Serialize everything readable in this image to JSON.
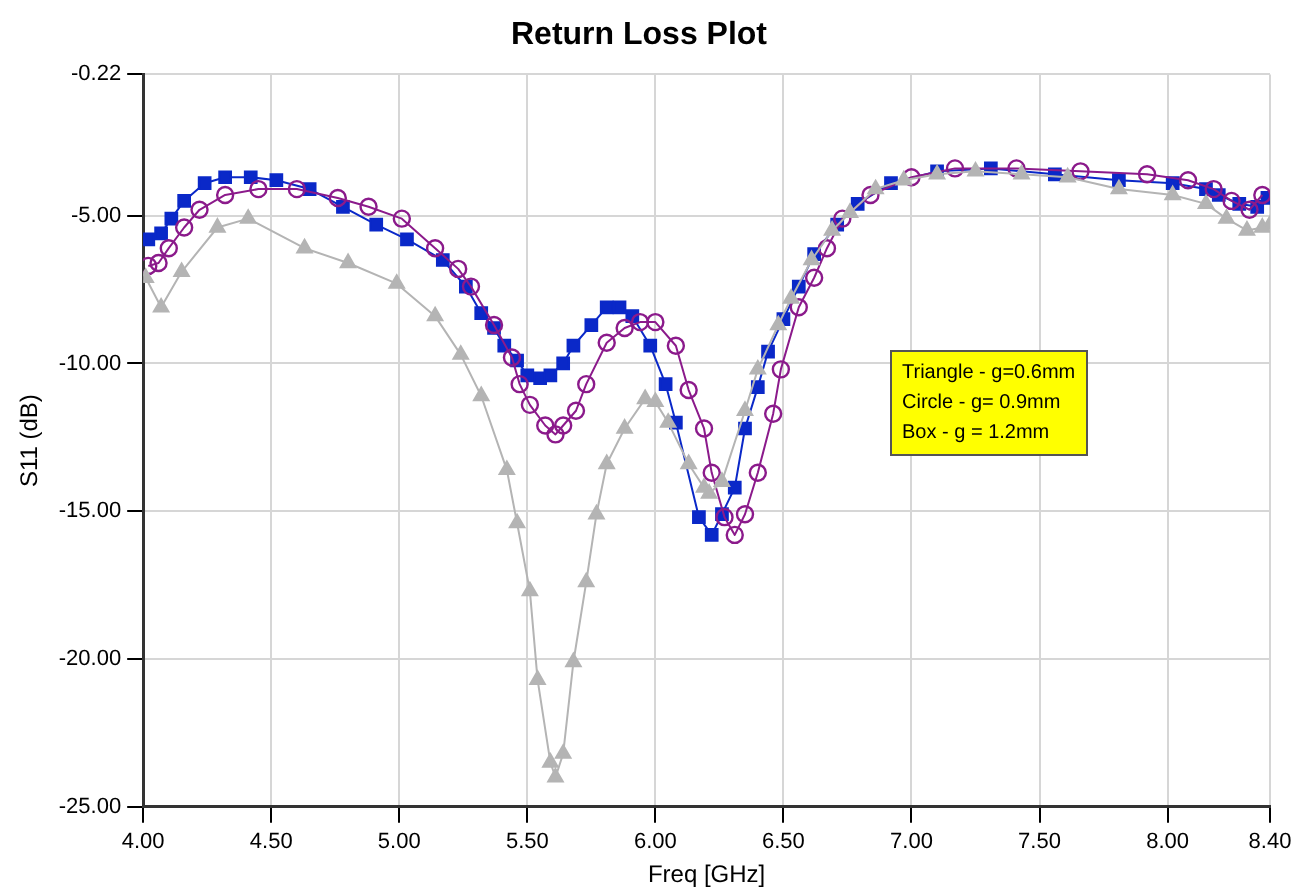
{
  "chart_data": {
    "type": "line",
    "title": "Return Loss Plot",
    "xlabel": "Freq [GHz]",
    "ylabel": "S11 (dB)",
    "xlim": [
      4,
      8.4
    ],
    "xticks": [
      {
        "value": 4,
        "label": "4.00"
      },
      {
        "value": 4.5,
        "label": "4.50"
      },
      {
        "value": 5,
        "label": "5.00"
      },
      {
        "value": 5.5,
        "label": "5.50"
      },
      {
        "value": 6,
        "label": "6.00"
      },
      {
        "value": 6.5,
        "label": "6.50"
      },
      {
        "value": 7,
        "label": "7.00"
      },
      {
        "value": 7.5,
        "label": "7.50"
      },
      {
        "value": 8,
        "label": "8.00"
      },
      {
        "value": 8.4,
        "label": "8.40"
      }
    ],
    "ylim": [
      -25,
      -0.22
    ],
    "yticks": [
      {
        "value": -25,
        "label": "-25.00"
      },
      {
        "value": -20,
        "label": "-20.00"
      },
      {
        "value": -15,
        "label": "-15.00"
      },
      {
        "value": -10,
        "label": "-10.00"
      },
      {
        "value": -5,
        "label": "-5.00"
      },
      {
        "value": -0.22,
        "label": "-0.22"
      }
    ],
    "grid": true,
    "annotations": [
      "Triangle - g=0.6mm",
      "Circle - g= 0.9mm",
      "Box - g = 1.2mm"
    ],
    "series": [
      {
        "color": "#b4b4b4",
        "marker": "triangle",
        "x": [
          4.01,
          4.07,
          4.15,
          4.29,
          4.41,
          4.63,
          4.8,
          4.99,
          5.14,
          5.24,
          5.32,
          5.42,
          5.46,
          5.51,
          5.54,
          5.59,
          5.61,
          5.64,
          5.68,
          5.73,
          5.77,
          5.81,
          5.88,
          5.96,
          6.0,
          6.05,
          6.13,
          6.19,
          6.21,
          6.26,
          6.35,
          6.4,
          6.48,
          6.53,
          6.61,
          6.69,
          6.76,
          6.86,
          6.97,
          7.1,
          7.25,
          7.43,
          7.61,
          7.81,
          8.02,
          8.15,
          8.23,
          8.31,
          8.37,
          8.4
        ],
        "values": [
          -7.1,
          -8.1,
          -6.9,
          -5.4,
          -5.1,
          -6.1,
          -6.6,
          -7.3,
          -8.4,
          -9.7,
          -11.1,
          -13.6,
          -15.4,
          -17.7,
          -20.7,
          -23.5,
          -24.0,
          -23.2,
          -20.1,
          -17.4,
          -15.1,
          -13.4,
          -12.2,
          -11.2,
          -11.3,
          -12.0,
          -13.4,
          -14.2,
          -14.4,
          -14.0,
          -11.6,
          -10.2,
          -8.7,
          -7.8,
          -6.5,
          -5.5,
          -4.9,
          -4.1,
          -3.8,
          -3.6,
          -3.5,
          -3.6,
          -3.7,
          -4.1,
          -4.3,
          -4.6,
          -5.1,
          -5.5,
          -5.4,
          -5.3
        ]
      },
      {
        "color": "#8b1a8b",
        "marker": "circle",
        "x": [
          4.02,
          4.06,
          4.1,
          4.16,
          4.22,
          4.32,
          4.45,
          4.6,
          4.76,
          4.88,
          5.01,
          5.14,
          5.23,
          5.28,
          5.37,
          5.44,
          5.47,
          5.51,
          5.57,
          5.61,
          5.64,
          5.69,
          5.73,
          5.81,
          5.88,
          5.94,
          6.0,
          6.08,
          6.13,
          6.19,
          6.22,
          6.27,
          6.31,
          6.35,
          6.4,
          6.46,
          6.49,
          6.56,
          6.62,
          6.67,
          6.73,
          6.84,
          7.0,
          7.17,
          7.41,
          7.66,
          7.92,
          8.08,
          8.18,
          8.25,
          8.32,
          8.37
        ],
        "values": [
          -6.7,
          -6.6,
          -6.1,
          -5.4,
          -4.8,
          -4.3,
          -4.1,
          -4.1,
          -4.4,
          -4.7,
          -5.1,
          -6.1,
          -6.8,
          -7.4,
          -8.7,
          -9.8,
          -10.7,
          -11.4,
          -12.1,
          -12.4,
          -12.1,
          -11.6,
          -10.7,
          -9.3,
          -8.8,
          -8.6,
          -8.6,
          -9.4,
          -10.9,
          -12.2,
          -13.7,
          -15.2,
          -15.8,
          -15.1,
          -13.7,
          -11.7,
          -10.2,
          -8.1,
          -7.1,
          -6.1,
          -5.1,
          -4.3,
          -3.7,
          -3.4,
          -3.4,
          -3.5,
          -3.6,
          -3.8,
          -4.1,
          -4.5,
          -4.8,
          -4.3
        ]
      },
      {
        "color": "#0a28c8",
        "marker": "square",
        "x": [
          4.02,
          4.07,
          4.11,
          4.16,
          4.24,
          4.32,
          4.42,
          4.52,
          4.65,
          4.78,
          4.91,
          5.03,
          5.17,
          5.26,
          5.32,
          5.37,
          5.41,
          5.46,
          5.5,
          5.55,
          5.59,
          5.64,
          5.68,
          5.75,
          5.81,
          5.86,
          5.91,
          5.98,
          6.04,
          6.08,
          6.17,
          6.22,
          6.26,
          6.31,
          6.35,
          6.4,
          6.44,
          6.5,
          6.56,
          6.62,
          6.71,
          6.79,
          6.92,
          7.1,
          7.31,
          7.56,
          7.81,
          8.02,
          8.15,
          8.2,
          8.28,
          8.35,
          8.39
        ],
        "values": [
          -5.8,
          -5.6,
          -5.1,
          -4.5,
          -3.9,
          -3.7,
          -3.7,
          -3.8,
          -4.1,
          -4.7,
          -5.3,
          -5.8,
          -6.5,
          -7.4,
          -8.3,
          -8.8,
          -9.4,
          -9.9,
          -10.4,
          -10.5,
          -10.4,
          -10.0,
          -9.4,
          -8.7,
          -8.1,
          -8.1,
          -8.4,
          -9.4,
          -10.7,
          -12.0,
          -15.2,
          -15.8,
          -15.1,
          -14.2,
          -12.2,
          -10.8,
          -9.6,
          -8.5,
          -7.4,
          -6.3,
          -5.3,
          -4.6,
          -3.9,
          -3.5,
          -3.4,
          -3.6,
          -3.8,
          -3.9,
          -4.1,
          -4.3,
          -4.6,
          -4.7,
          -4.4
        ]
      }
    ]
  }
}
